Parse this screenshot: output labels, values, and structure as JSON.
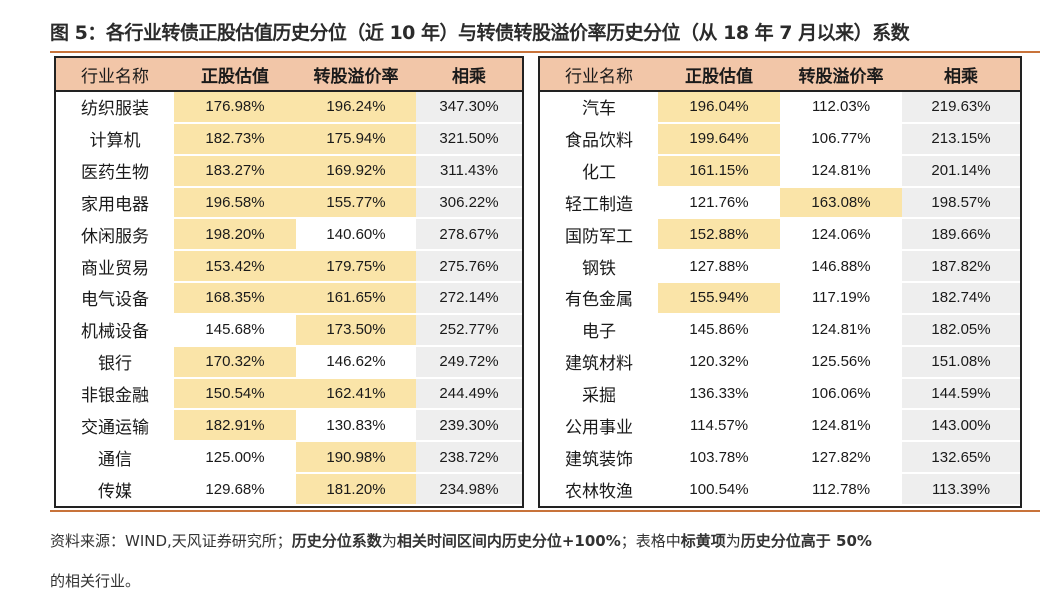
{
  "title": "图 5：各行业转债正股估值历史分位（近 10 年）与转债转股溢价率历史分位（从 18 年 7 月以来）系数",
  "headers": [
    "行业名称",
    "正股估值",
    "转股溢价率",
    "相乘"
  ],
  "left_rows": [
    {
      "name": "纺织服装",
      "stock": "176.98%",
      "premium": "196.24%",
      "product": "347.30%",
      "hl_stock": true,
      "hl_premium": true
    },
    {
      "name": "计算机",
      "stock": "182.73%",
      "premium": "175.94%",
      "product": "321.50%",
      "hl_stock": true,
      "hl_premium": true
    },
    {
      "name": "医药生物",
      "stock": "183.27%",
      "premium": "169.92%",
      "product": "311.43%",
      "hl_stock": true,
      "hl_premium": true
    },
    {
      "name": "家用电器",
      "stock": "196.58%",
      "premium": "155.77%",
      "product": "306.22%",
      "hl_stock": true,
      "hl_premium": true
    },
    {
      "name": "休闲服务",
      "stock": "198.20%",
      "premium": "140.60%",
      "product": "278.67%",
      "hl_stock": true,
      "hl_premium": false
    },
    {
      "name": "商业贸易",
      "stock": "153.42%",
      "premium": "179.75%",
      "product": "275.76%",
      "hl_stock": true,
      "hl_premium": true
    },
    {
      "name": "电气设备",
      "stock": "168.35%",
      "premium": "161.65%",
      "product": "272.14%",
      "hl_stock": true,
      "hl_premium": true
    },
    {
      "name": "机械设备",
      "stock": "145.68%",
      "premium": "173.50%",
      "product": "252.77%",
      "hl_stock": false,
      "hl_premium": true
    },
    {
      "name": "银行",
      "stock": "170.32%",
      "premium": "146.62%",
      "product": "249.72%",
      "hl_stock": true,
      "hl_premium": false
    },
    {
      "name": "非银金融",
      "stock": "150.54%",
      "premium": "162.41%",
      "product": "244.49%",
      "hl_stock": true,
      "hl_premium": true
    },
    {
      "name": "交通运输",
      "stock": "182.91%",
      "premium": "130.83%",
      "product": "239.30%",
      "hl_stock": true,
      "hl_premium": false
    },
    {
      "name": "通信",
      "stock": "125.00%",
      "premium": "190.98%",
      "product": "238.72%",
      "hl_stock": false,
      "hl_premium": true
    },
    {
      "name": "传媒",
      "stock": "129.68%",
      "premium": "181.20%",
      "product": "234.98%",
      "hl_stock": false,
      "hl_premium": true
    }
  ],
  "right_rows": [
    {
      "name": "汽车",
      "stock": "196.04%",
      "premium": "112.03%",
      "product": "219.63%",
      "hl_stock": true,
      "hl_premium": false
    },
    {
      "name": "食品饮料",
      "stock": "199.64%",
      "premium": "106.77%",
      "product": "213.15%",
      "hl_stock": true,
      "hl_premium": false
    },
    {
      "name": "化工",
      "stock": "161.15%",
      "premium": "124.81%",
      "product": "201.14%",
      "hl_stock": true,
      "hl_premium": false
    },
    {
      "name": "轻工制造",
      "stock": "121.76%",
      "premium": "163.08%",
      "product": "198.57%",
      "hl_stock": false,
      "hl_premium": true
    },
    {
      "name": "国防军工",
      "stock": "152.88%",
      "premium": "124.06%",
      "product": "189.66%",
      "hl_stock": true,
      "hl_premium": false
    },
    {
      "name": "钢铁",
      "stock": "127.88%",
      "premium": "146.88%",
      "product": "187.82%",
      "hl_stock": false,
      "hl_premium": false
    },
    {
      "name": "有色金属",
      "stock": "155.94%",
      "premium": "117.19%",
      "product": "182.74%",
      "hl_stock": true,
      "hl_premium": false
    },
    {
      "name": "电子",
      "stock": "145.86%",
      "premium": "124.81%",
      "product": "182.05%",
      "hl_stock": false,
      "hl_premium": false
    },
    {
      "name": "建筑材料",
      "stock": "120.32%",
      "premium": "125.56%",
      "product": "151.08%",
      "hl_stock": false,
      "hl_premium": false
    },
    {
      "name": "采掘",
      "stock": "136.33%",
      "premium": "106.06%",
      "product": "144.59%",
      "hl_stock": false,
      "hl_premium": false
    },
    {
      "name": "公用事业",
      "stock": "114.57%",
      "premium": "124.81%",
      "product": "143.00%",
      "hl_stock": false,
      "hl_premium": false
    },
    {
      "name": "建筑装饰",
      "stock": "103.78%",
      "premium": "127.82%",
      "product": "132.65%",
      "hl_stock": false,
      "hl_premium": false
    },
    {
      "name": "农林牧渔",
      "stock": "100.54%",
      "premium": "112.78%",
      "product": "113.39%",
      "hl_stock": false,
      "hl_premium": false
    }
  ],
  "separators": {
    "left_after_index": 2,
    "right_after_index": 2
  },
  "footer": {
    "line1": [
      {
        "text": "资料来源：WIND,天风证券研究所；",
        "bold": false
      },
      {
        "text": "历史分位系数",
        "bold": true
      },
      {
        "text": "为",
        "bold": false
      },
      {
        "text": "相关时间区间内历史分位+100%",
        "bold": true
      },
      {
        "text": "；表格中",
        "bold": false
      },
      {
        "text": "标黄项",
        "bold": true
      },
      {
        "text": "为",
        "bold": false
      },
      {
        "text": "历史分位高于 50%",
        "bold": true
      }
    ],
    "line2": "的相关行业。"
  },
  "colors": {
    "header_bg": "#f2c6a8",
    "highlight": "#fae4a8",
    "product_bg": "#eeeeee",
    "rule": "#c8733a"
  }
}
